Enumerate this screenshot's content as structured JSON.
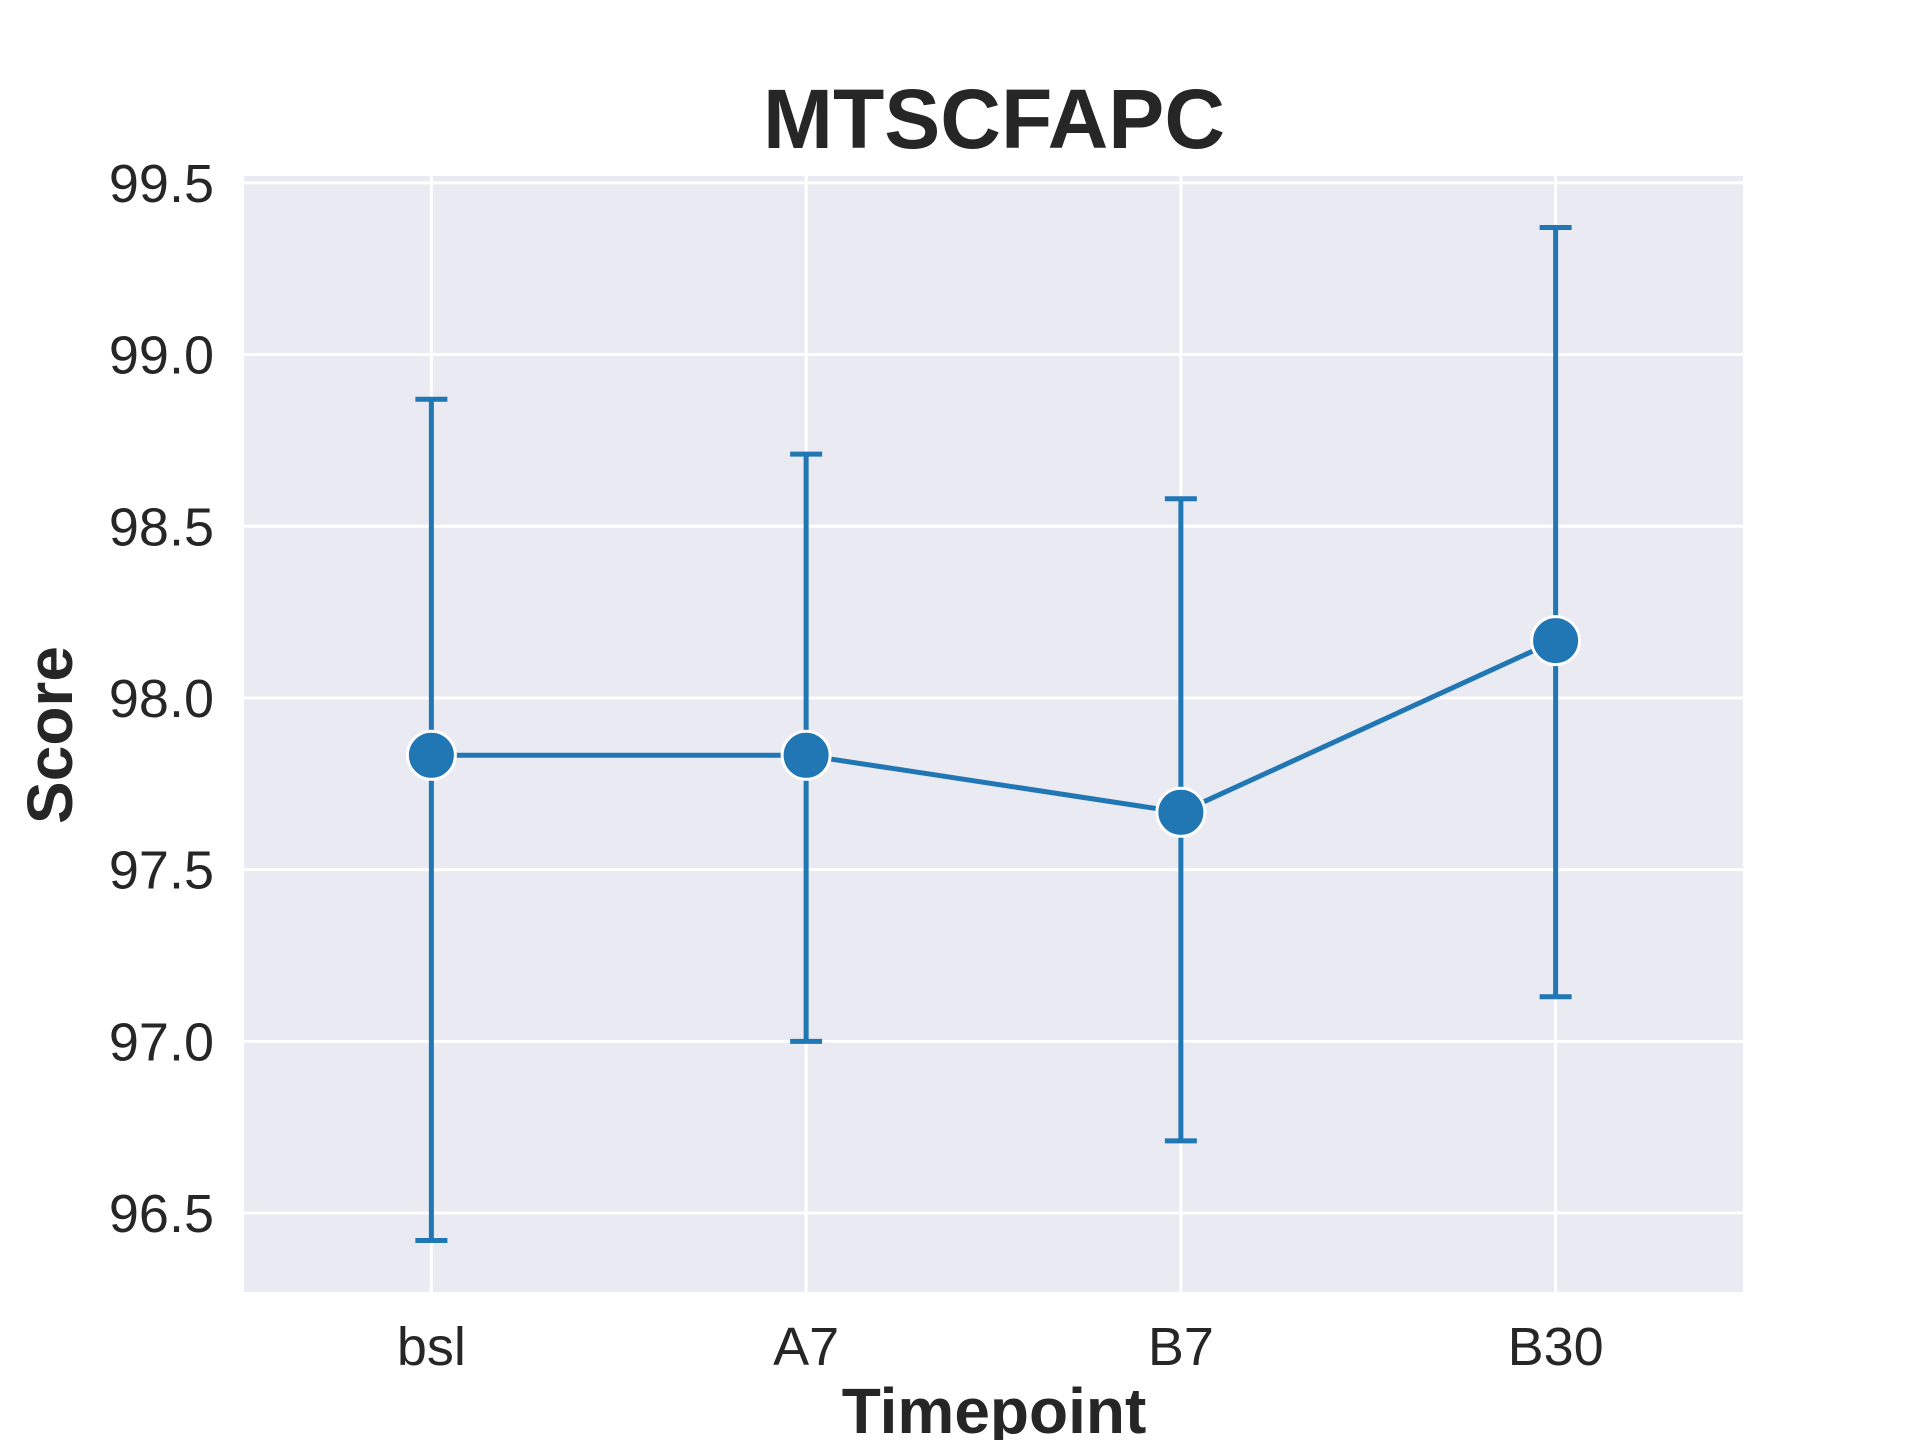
{
  "chart_data": {
    "type": "line",
    "title": "MTSCFAPC",
    "xlabel": "Timepoint",
    "ylabel": "Score",
    "categories": [
      "bsl",
      "A7",
      "B7",
      "B30"
    ],
    "series": [
      {
        "values": [
          97.833,
          97.833,
          97.667,
          98.167
        ],
        "error_low": [
          96.42,
          97.0,
          96.71,
          97.13
        ],
        "error_high": [
          98.87,
          98.71,
          98.58,
          99.37
        ]
      }
    ],
    "ylim": [
      96.27,
      99.52
    ],
    "yticks": [
      96.5,
      97.0,
      97.5,
      98.0,
      98.5,
      99.0,
      99.5
    ],
    "ytick_labels": [
      "96.5",
      "97.0",
      "97.5",
      "98.0",
      "98.5",
      "99.0",
      "99.5"
    ],
    "grid": true,
    "colors": {
      "series": "#2176b4",
      "plot_background": "#eaeaf2",
      "grid": "#ffffff",
      "text": "#262626"
    }
  }
}
